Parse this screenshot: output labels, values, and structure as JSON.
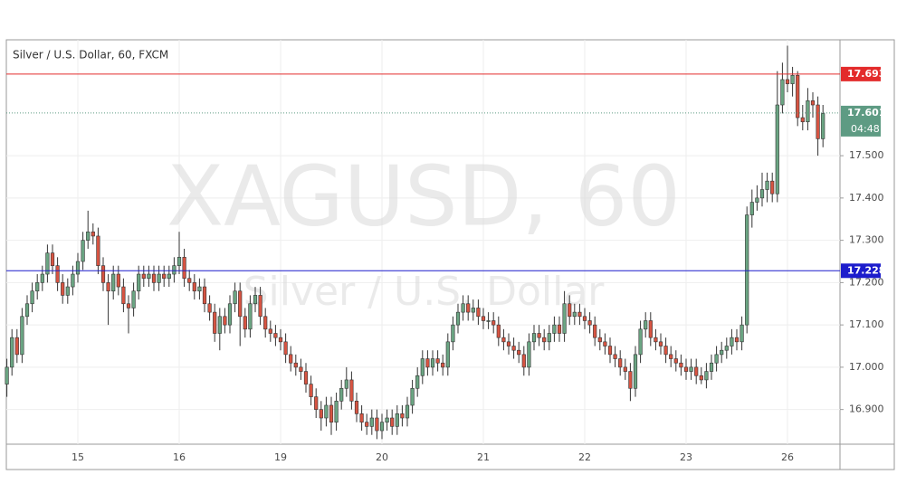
{
  "chart_data": {
    "type": "candlestick",
    "title": "Silver / U.S. Dollar, 60, FXCM",
    "watermark": "XAGUSD, 60",
    "watermark_subtitle": "Silver / U.S. Dollar",
    "up_color": "#6ba583",
    "down_color": "#d75442",
    "grid": true,
    "ylim": [
      16.818,
      17.774
    ],
    "yticks": [
      {
        "value": 16.9,
        "label": "16.900"
      },
      {
        "value": 17.0,
        "label": "17.000"
      },
      {
        "value": 17.1,
        "label": "17.100"
      },
      {
        "value": 17.2,
        "label": "17.200"
      },
      {
        "value": 17.3,
        "label": "17.300"
      },
      {
        "value": 17.4,
        "label": "17.400"
      },
      {
        "value": 17.5,
        "label": "17.500"
      }
    ],
    "hlines": [
      {
        "value": 17.693,
        "color": "#e32b2b"
      },
      {
        "value": 17.228,
        "color": "#1c1ccc"
      }
    ],
    "last_price": {
      "value": 17.601,
      "countdown": "04:48",
      "color": "#5e9b83"
    },
    "categories": [
      null,
      null,
      null,
      null,
      null,
      null,
      null,
      null,
      null,
      null,
      null,
      null,
      null,
      null,
      "15",
      null,
      null,
      null,
      null,
      null,
      null,
      null,
      null,
      null,
      null,
      null,
      null,
      null,
      null,
      null,
      null,
      null,
      null,
      null,
      "16",
      null,
      null,
      null,
      null,
      null,
      null,
      null,
      null,
      null,
      null,
      null,
      null,
      null,
      null,
      null,
      null,
      null,
      null,
      null,
      "19",
      null,
      null,
      null,
      null,
      null,
      null,
      null,
      null,
      null,
      null,
      null,
      null,
      null,
      null,
      null,
      null,
      null,
      null,
      null,
      "20",
      null,
      null,
      null,
      null,
      null,
      null,
      null,
      null,
      null,
      null,
      null,
      null,
      null,
      null,
      null,
      null,
      null,
      null,
      null,
      "21",
      null,
      null,
      null,
      null,
      null,
      null,
      null,
      null,
      null,
      null,
      null,
      null,
      null,
      null,
      null,
      null,
      null,
      null,
      null,
      "22",
      null,
      null,
      null,
      null,
      null,
      null,
      null,
      null,
      null,
      null,
      null,
      null,
      null,
      null,
      null,
      null,
      null,
      null,
      null,
      "23",
      null,
      null,
      null,
      null,
      null,
      null,
      null,
      null,
      null,
      null,
      null,
      null,
      null,
      null,
      null,
      null,
      null,
      null,
      null,
      "26",
      null,
      null,
      null,
      null,
      null,
      null,
      null
    ],
    "open": [
      16.96,
      17.0,
      17.07,
      17.03,
      17.12,
      17.15,
      17.18,
      17.2,
      17.22,
      17.27,
      17.24,
      17.2,
      17.17,
      17.19,
      17.22,
      17.25,
      17.3,
      17.32,
      17.31,
      17.24,
      17.2,
      17.18,
      17.22,
      17.19,
      17.15,
      17.14,
      17.18,
      17.22,
      17.21,
      17.22,
      17.2,
      17.22,
      17.21,
      17.22,
      17.24,
      17.26,
      17.21,
      17.2,
      17.18,
      17.19,
      17.15,
      17.13,
      17.08,
      17.12,
      17.1,
      17.15,
      17.18,
      17.12,
      17.09,
      17.15,
      17.17,
      17.12,
      17.09,
      17.08,
      17.07,
      17.06,
      17.03,
      17.01,
      17.0,
      16.99,
      16.96,
      16.93,
      16.9,
      16.88,
      16.91,
      16.87,
      16.92,
      16.95,
      16.97,
      16.92,
      16.89,
      16.87,
      16.86,
      16.88,
      16.85,
      16.87,
      16.88,
      16.86,
      16.89,
      16.88,
      16.91,
      16.95,
      16.98,
      17.02,
      17.0,
      17.02,
      17.01,
      17.0,
      17.06,
      17.1,
      17.13,
      17.15,
      17.13,
      17.14,
      17.12,
      17.11,
      17.11,
      17.1,
      17.07,
      17.06,
      17.05,
      17.04,
      17.03,
      17.0,
      17.06,
      17.08,
      17.07,
      17.06,
      17.08,
      17.1,
      17.08,
      17.15,
      17.12,
      17.13,
      17.12,
      17.11,
      17.1,
      17.07,
      17.06,
      17.05,
      17.03,
      17.02,
      17.0,
      16.99,
      16.95,
      17.03,
      17.09,
      17.11,
      17.07,
      17.06,
      17.05,
      17.03,
      17.02,
      17.01,
      17.0,
      16.99,
      17.0,
      16.98,
      16.97,
      16.99,
      17.01,
      17.03,
      17.04,
      17.05,
      17.07,
      17.06,
      17.1,
      17.36,
      17.39,
      17.4,
      17.42,
      17.44,
      17.41,
      17.62,
      17.68,
      17.67,
      17.69,
      17.59,
      17.58,
      17.63,
      17.62,
      17.54
    ],
    "high": [
      17.02,
      17.09,
      17.09,
      17.14,
      17.17,
      17.2,
      17.22,
      17.24,
      17.29,
      17.29,
      17.26,
      17.22,
      17.21,
      17.24,
      17.27,
      17.32,
      17.37,
      17.34,
      17.33,
      17.26,
      17.22,
      17.24,
      17.24,
      17.21,
      17.17,
      17.2,
      17.24,
      17.24,
      17.24,
      17.24,
      17.24,
      17.24,
      17.24,
      17.26,
      17.32,
      17.28,
      17.23,
      17.22,
      17.21,
      17.21,
      17.17,
      17.15,
      17.14,
      17.14,
      17.17,
      17.2,
      17.2,
      17.14,
      17.17,
      17.19,
      17.19,
      17.14,
      17.11,
      17.1,
      17.09,
      17.08,
      17.05,
      17.03,
      17.02,
      17.01,
      16.98,
      16.95,
      16.92,
      16.93,
      16.93,
      16.94,
      16.97,
      17.0,
      16.99,
      16.94,
      16.91,
      16.89,
      16.9,
      16.9,
      16.89,
      16.9,
      16.9,
      16.91,
      16.91,
      16.93,
      16.97,
      17.0,
      17.04,
      17.04,
      17.04,
      17.04,
      17.03,
      17.08,
      17.12,
      17.15,
      17.17,
      17.17,
      17.16,
      17.16,
      17.14,
      17.13,
      17.13,
      17.12,
      17.09,
      17.08,
      17.07,
      17.06,
      17.05,
      17.08,
      17.1,
      17.1,
      17.09,
      17.1,
      17.12,
      17.12,
      17.18,
      17.17,
      17.15,
      17.15,
      17.14,
      17.13,
      17.12,
      17.09,
      17.08,
      17.07,
      17.05,
      17.04,
      17.02,
      17.01,
      17.05,
      17.11,
      17.13,
      17.13,
      17.09,
      17.08,
      17.07,
      17.05,
      17.04,
      17.03,
      17.02,
      17.02,
      17.02,
      17.0,
      17.01,
      17.03,
      17.05,
      17.06,
      17.07,
      17.09,
      17.09,
      17.12,
      17.38,
      17.42,
      17.43,
      17.46,
      17.46,
      17.46,
      17.7,
      17.72,
      17.76,
      17.71,
      17.7,
      17.62,
      17.66,
      17.65,
      17.64,
      17.62
    ],
    "low": [
      16.93,
      16.98,
      17.01,
      17.01,
      17.1,
      17.13,
      17.16,
      17.18,
      17.2,
      17.22,
      17.18,
      17.15,
      17.15,
      17.17,
      17.2,
      17.23,
      17.28,
      17.29,
      17.22,
      17.18,
      17.1,
      17.16,
      17.17,
      17.13,
      17.08,
      17.12,
      17.16,
      17.19,
      17.19,
      17.18,
      17.18,
      17.19,
      17.19,
      17.2,
      17.22,
      17.19,
      17.18,
      17.16,
      17.16,
      17.13,
      17.11,
      17.06,
      17.04,
      17.08,
      17.08,
      17.13,
      17.05,
      17.07,
      17.07,
      17.13,
      17.1,
      17.07,
      17.06,
      17.05,
      17.04,
      17.01,
      16.99,
      16.98,
      16.97,
      16.94,
      16.91,
      16.88,
      16.85,
      16.86,
      16.84,
      16.85,
      16.9,
      16.93,
      16.9,
      16.87,
      16.85,
      16.84,
      16.84,
      16.83,
      16.83,
      16.85,
      16.84,
      16.84,
      16.86,
      16.86,
      16.89,
      16.93,
      16.96,
      16.98,
      16.98,
      16.99,
      16.98,
      16.98,
      17.04,
      17.08,
      17.11,
      17.11,
      17.11,
      17.1,
      17.09,
      17.09,
      17.08,
      17.05,
      17.04,
      17.03,
      17.02,
      17.01,
      16.98,
      16.98,
      17.04,
      17.05,
      17.04,
      17.04,
      17.06,
      17.06,
      17.06,
      17.1,
      17.1,
      17.1,
      17.09,
      17.08,
      17.05,
      17.04,
      17.03,
      17.01,
      17.0,
      16.98,
      16.97,
      16.92,
      16.93,
      17.01,
      17.07,
      17.05,
      17.04,
      17.03,
      17.01,
      17.0,
      16.99,
      16.98,
      16.97,
      16.97,
      16.96,
      16.96,
      16.95,
      16.97,
      16.99,
      17.01,
      17.02,
      17.03,
      17.04,
      17.04,
      17.08,
      17.33,
      17.37,
      17.38,
      17.39,
      17.39,
      17.39,
      17.6,
      17.65,
      17.64,
      17.57,
      17.56,
      17.56,
      17.59,
      17.5,
      17.52
    ],
    "close": [
      17.0,
      17.07,
      17.03,
      17.12,
      17.15,
      17.18,
      17.2,
      17.22,
      17.27,
      17.24,
      17.2,
      17.17,
      17.19,
      17.22,
      17.25,
      17.3,
      17.32,
      17.31,
      17.24,
      17.2,
      17.18,
      17.22,
      17.19,
      17.15,
      17.14,
      17.18,
      17.22,
      17.21,
      17.22,
      17.2,
      17.22,
      17.21,
      17.22,
      17.24,
      17.26,
      17.21,
      17.2,
      17.18,
      17.19,
      17.15,
      17.13,
      17.08,
      17.12,
      17.1,
      17.15,
      17.18,
      17.12,
      17.09,
      17.15,
      17.17,
      17.12,
      17.09,
      17.08,
      17.07,
      17.06,
      17.03,
      17.01,
      17.0,
      16.99,
      16.96,
      16.93,
      16.9,
      16.88,
      16.91,
      16.87,
      16.92,
      16.95,
      16.97,
      16.92,
      16.89,
      16.87,
      16.86,
      16.88,
      16.85,
      16.87,
      16.88,
      16.86,
      16.89,
      16.88,
      16.91,
      16.95,
      16.98,
      17.02,
      17.0,
      17.02,
      17.01,
      17.0,
      17.06,
      17.1,
      17.13,
      17.15,
      17.13,
      17.14,
      17.12,
      17.11,
      17.11,
      17.1,
      17.07,
      17.06,
      17.05,
      17.04,
      17.03,
      17.0,
      17.06,
      17.08,
      17.07,
      17.06,
      17.08,
      17.1,
      17.08,
      17.15,
      17.12,
      17.13,
      17.12,
      17.11,
      17.1,
      17.07,
      17.06,
      17.05,
      17.03,
      17.02,
      17.0,
      16.99,
      16.95,
      17.03,
      17.09,
      17.11,
      17.07,
      17.06,
      17.05,
      17.03,
      17.02,
      17.01,
      17.0,
      16.99,
      17.0,
      16.98,
      16.97,
      16.99,
      17.01,
      17.03,
      17.04,
      17.05,
      17.07,
      17.06,
      17.1,
      17.36,
      17.39,
      17.4,
      17.42,
      17.44,
      17.41,
      17.62,
      17.68,
      17.67,
      17.69,
      17.59,
      17.58,
      17.63,
      17.62,
      17.54,
      17.6
    ]
  }
}
